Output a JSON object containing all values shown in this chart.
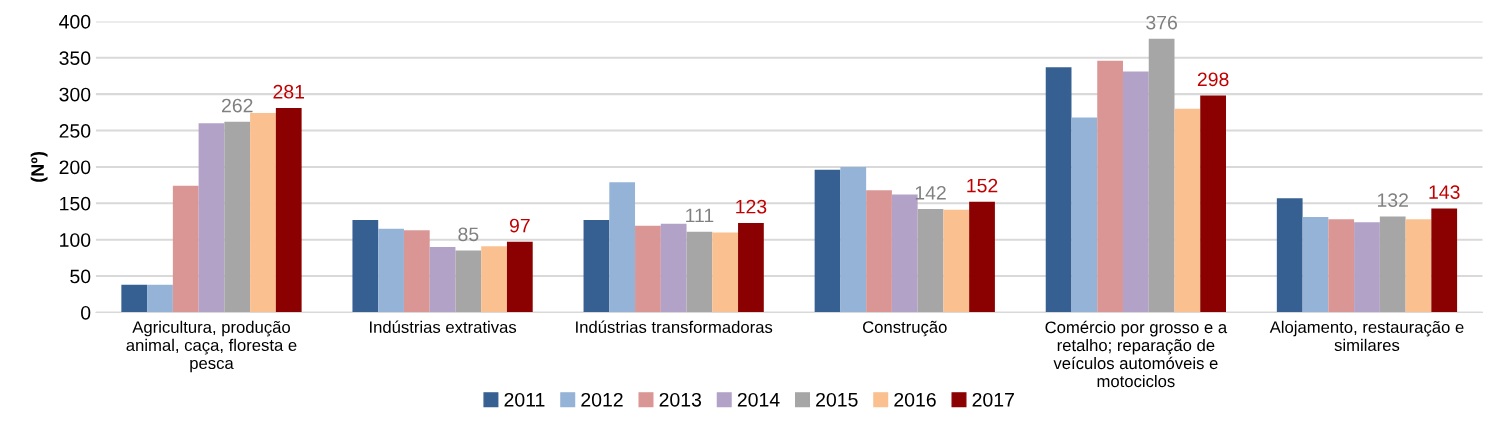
{
  "chart_data": {
    "type": "bar",
    "ylabel": "(Nº)",
    "categories": [
      "Agricultura, produção animal, caça, floresta e pesca",
      "Indústrias extrativas",
      "Indústrias transformadoras",
      "Construção",
      "Comércio por grosso e a retalho; reparação de veículos automóveis e motociclos",
      "Alojamento, restauração e similares"
    ],
    "series": [
      {
        "name": "2011",
        "color": "#376092",
        "values": [
          38,
          127,
          127,
          196,
          337,
          157
        ]
      },
      {
        "name": "2012",
        "color": "#95b3d7",
        "values": [
          38,
          115,
          179,
          200,
          268,
          131
        ]
      },
      {
        "name": "2013",
        "color": "#d99694",
        "values": [
          174,
          113,
          119,
          168,
          346,
          128
        ]
      },
      {
        "name": "2014",
        "color": "#b3a2c7",
        "values": [
          260,
          90,
          122,
          162,
          331,
          124
        ]
      },
      {
        "name": "2015",
        "color": "#a6a6a6",
        "values": [
          262,
          85,
          111,
          142,
          376,
          132
        ],
        "value_labels": [
          "262",
          "85",
          "111",
          "142",
          "376",
          "132"
        ]
      },
      {
        "name": "2016",
        "color": "#fac090",
        "values": [
          274,
          91,
          110,
          141,
          280,
          128
        ]
      },
      {
        "name": "2017",
        "color": "#8b0000",
        "values": [
          281,
          97,
          123,
          152,
          298,
          143
        ],
        "value_labels": [
          "281",
          "97",
          "123",
          "152",
          "298",
          "143"
        ]
      }
    ],
    "ylim": [
      0,
      400
    ],
    "yticks": [
      0,
      50,
      100,
      150,
      200,
      250,
      300,
      350,
      400
    ],
    "grid": "y",
    "legend": "bottom"
  }
}
